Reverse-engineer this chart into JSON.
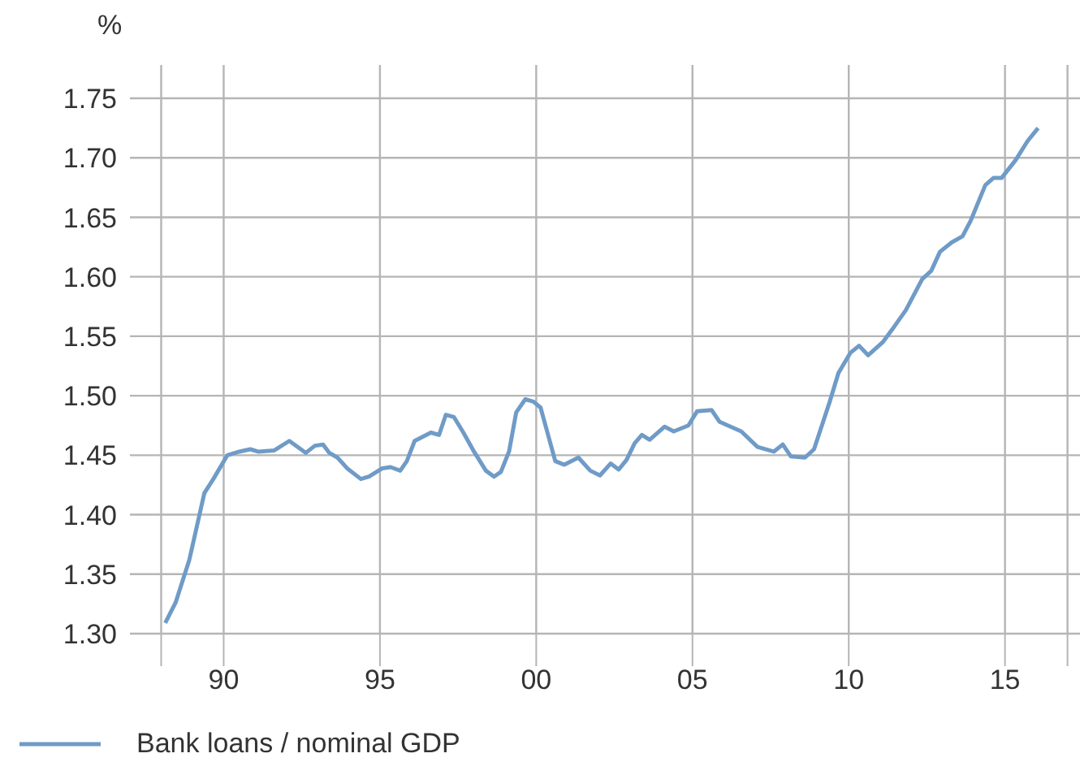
{
  "chart_data": {
    "type": "line",
    "ylabel": "%",
    "legend": "bottom",
    "grid": true,
    "marker": "none",
    "line_style": "solid",
    "xlim": [
      1987,
      2017.4
    ],
    "ylim": [
      1.3,
      1.778
    ],
    "xticks": [
      {
        "value": 1988,
        "label": null
      },
      {
        "value": 1990,
        "label": "90"
      },
      {
        "value": 1995,
        "label": "95"
      },
      {
        "value": 2000,
        "label": "00"
      },
      {
        "value": 2005,
        "label": "05"
      },
      {
        "value": 2010,
        "label": "10"
      },
      {
        "value": 2015,
        "label": "15"
      },
      {
        "value": 2017,
        "label": null
      }
    ],
    "yticks": [
      {
        "value": 1.3,
        "label": "1.30"
      },
      {
        "value": 1.35,
        "label": "1.35"
      },
      {
        "value": 1.4,
        "label": "1.40"
      },
      {
        "value": 1.45,
        "label": "1.45"
      },
      {
        "value": 1.5,
        "label": "1.50"
      },
      {
        "value": 1.55,
        "label": "1.55"
      },
      {
        "value": 1.6,
        "label": "1.60"
      },
      {
        "value": 1.65,
        "label": "1.65"
      },
      {
        "value": 1.7,
        "label": "1.70"
      },
      {
        "value": 1.75,
        "label": "1.75"
      }
    ],
    "series": [
      {
        "name": "Bank loans / nominal GDP",
        "color": "#6f9bc7",
        "x": [
          1988.13,
          1988.46,
          1988.9,
          1989.38,
          1989.67,
          1990.12,
          1990.5,
          1990.85,
          1991.1,
          1991.62,
          1992.1,
          1992.63,
          1992.92,
          1993.18,
          1993.38,
          1993.64,
          1993.95,
          1994.39,
          1994.65,
          1995.08,
          1995.34,
          1995.65,
          1995.86,
          1996.11,
          1996.63,
          1996.89,
          1997.11,
          1997.37,
          1997.67,
          1998.01,
          1998.39,
          1998.65,
          1998.87,
          1999.13,
          1999.36,
          1999.65,
          1999.91,
          2000.14,
          2000.61,
          2000.9,
          2001.35,
          2001.73,
          2002.04,
          2002.38,
          2002.64,
          2002.89,
          2003.15,
          2003.38,
          2003.63,
          2004.11,
          2004.4,
          2004.87,
          2005.15,
          2005.61,
          2005.87,
          2006.22,
          2006.56,
          2007.08,
          2007.6,
          2007.89,
          2008.15,
          2008.6,
          2008.89,
          2009.38,
          2009.67,
          2010.05,
          2010.33,
          2010.62,
          2011.09,
          2011.4,
          2011.83,
          2012.35,
          2012.64,
          2012.92,
          2013.3,
          2013.64,
          2013.9,
          2014.37,
          2014.63,
          2014.89,
          2015.34,
          2015.72,
          2016.06
        ],
        "values": [
          1.309,
          1.326,
          1.362,
          1.418,
          1.43,
          1.45,
          1.453,
          1.455,
          1.453,
          1.454,
          1.462,
          1.452,
          1.458,
          1.459,
          1.452,
          1.448,
          1.439,
          1.43,
          1.432,
          1.439,
          1.44,
          1.437,
          1.445,
          1.462,
          1.469,
          1.467,
          1.484,
          1.482,
          1.469,
          1.453,
          1.437,
          1.432,
          1.436,
          1.453,
          1.486,
          1.497,
          1.495,
          1.49,
          1.445,
          1.442,
          1.448,
          1.437,
          1.433,
          1.443,
          1.438,
          1.446,
          1.46,
          1.467,
          1.463,
          1.474,
          1.47,
          1.475,
          1.487,
          1.488,
          1.478,
          1.474,
          1.47,
          1.457,
          1.453,
          1.459,
          1.449,
          1.448,
          1.455,
          1.494,
          1.519,
          1.536,
          1.542,
          1.534,
          1.545,
          1.556,
          1.572,
          1.598,
          1.605,
          1.621,
          1.629,
          1.634,
          1.647,
          1.677,
          1.683,
          1.683,
          1.698,
          1.714,
          1.725
        ]
      }
    ]
  }
}
